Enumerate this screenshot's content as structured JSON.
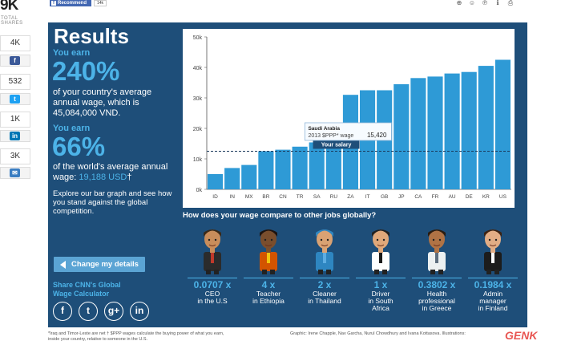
{
  "share": {
    "total_count": "9K",
    "total_label": "TOTAL SHARES",
    "items": [
      {
        "count": "4K",
        "network": "facebook",
        "glyph": "f",
        "color": "#3b5998"
      },
      {
        "count": "532",
        "network": "twitter",
        "glyph": "t",
        "color": "#1da1f2"
      },
      {
        "count": "1K",
        "network": "linkedin",
        "glyph": "in",
        "color": "#0077b5"
      },
      {
        "count": "3K",
        "network": "email",
        "glyph": "✉",
        "color": "#3b7ec2"
      }
    ]
  },
  "top_bar": {
    "recommend_label": "Recommend",
    "recommend_count": "14k"
  },
  "results": {
    "title": "Results",
    "you_earn_1": "You earn",
    "pct_country": "240%",
    "country_text_1": "of your country's average",
    "country_text_2": "annual wage, which is",
    "country_value": "45,084,000 VND.",
    "you_earn_2": "You earn",
    "pct_world": "66%",
    "world_text_1": "of the world's average annual",
    "world_text_2": "wage:",
    "world_value": "19,188 USD",
    "world_mark": "†",
    "explore": "Explore our bar graph and see how you stand against the global competition.",
    "change_button": "Change my details",
    "share_calc_1": "Share CNN's Global",
    "share_calc_2": "Wage Calculator"
  },
  "chart_data": {
    "type": "bar",
    "categories": [
      "ID",
      "IN",
      "MX",
      "BR",
      "CN",
      "TR",
      "SA",
      "RU",
      "ZA",
      "IT",
      "GB",
      "JP",
      "CA",
      "FR",
      "AU",
      "DE",
      "KR",
      "US"
    ],
    "values": [
      5000,
      7000,
      8000,
      12500,
      13000,
      14000,
      15400,
      16000,
      31000,
      32500,
      32500,
      34500,
      36500,
      37000,
      38000,
      38500,
      40500,
      42500
    ],
    "ylim": [
      0,
      50000
    ],
    "yticks": [
      "0k",
      "10k",
      "20k",
      "30k",
      "40k",
      "50k"
    ],
    "salary_line_value": 12500,
    "salary_label": "Your salary",
    "tooltip_country": "Saudi Arabia",
    "tooltip_label": "2013 $PPP* wage",
    "tooltip_value": "15,420",
    "bar_color": "#2e9ad6"
  },
  "jobs": {
    "title": "How does your wage compare to other jobs globally?",
    "items": [
      {
        "mult": "0.0707 x",
        "name_1": "CEO",
        "name_2": "in the U.S",
        "name_3": ""
      },
      {
        "mult": "4 x",
        "name_1": "Teacher",
        "name_2": "in Ethiopia",
        "name_3": ""
      },
      {
        "mult": "2 x",
        "name_1": "Cleaner",
        "name_2": "in Thailand",
        "name_3": ""
      },
      {
        "mult": "1 x",
        "name_1": "Driver",
        "name_2": "in South",
        "name_3": "Africa"
      },
      {
        "mult": "0.3802 x",
        "name_1": "Health",
        "name_2": "professional",
        "name_3": "in Greece"
      },
      {
        "mult": "0.1984 x",
        "name_1": "Admin",
        "name_2": "manager",
        "name_3": "in Finland"
      }
    ]
  },
  "footer": {
    "footnote_1": "*Iraq and Timor-Leste are net  † $PPP wages calculate the buying power of what you earn,",
    "footnote_2": "inside your country, relative to someone in the U.S.",
    "credits": "Graphic: Irene Chapple, Nav Garcha, Nurul Chowdhury and Ivana Kottasova. Illustrations:",
    "watermark": "GENK"
  }
}
